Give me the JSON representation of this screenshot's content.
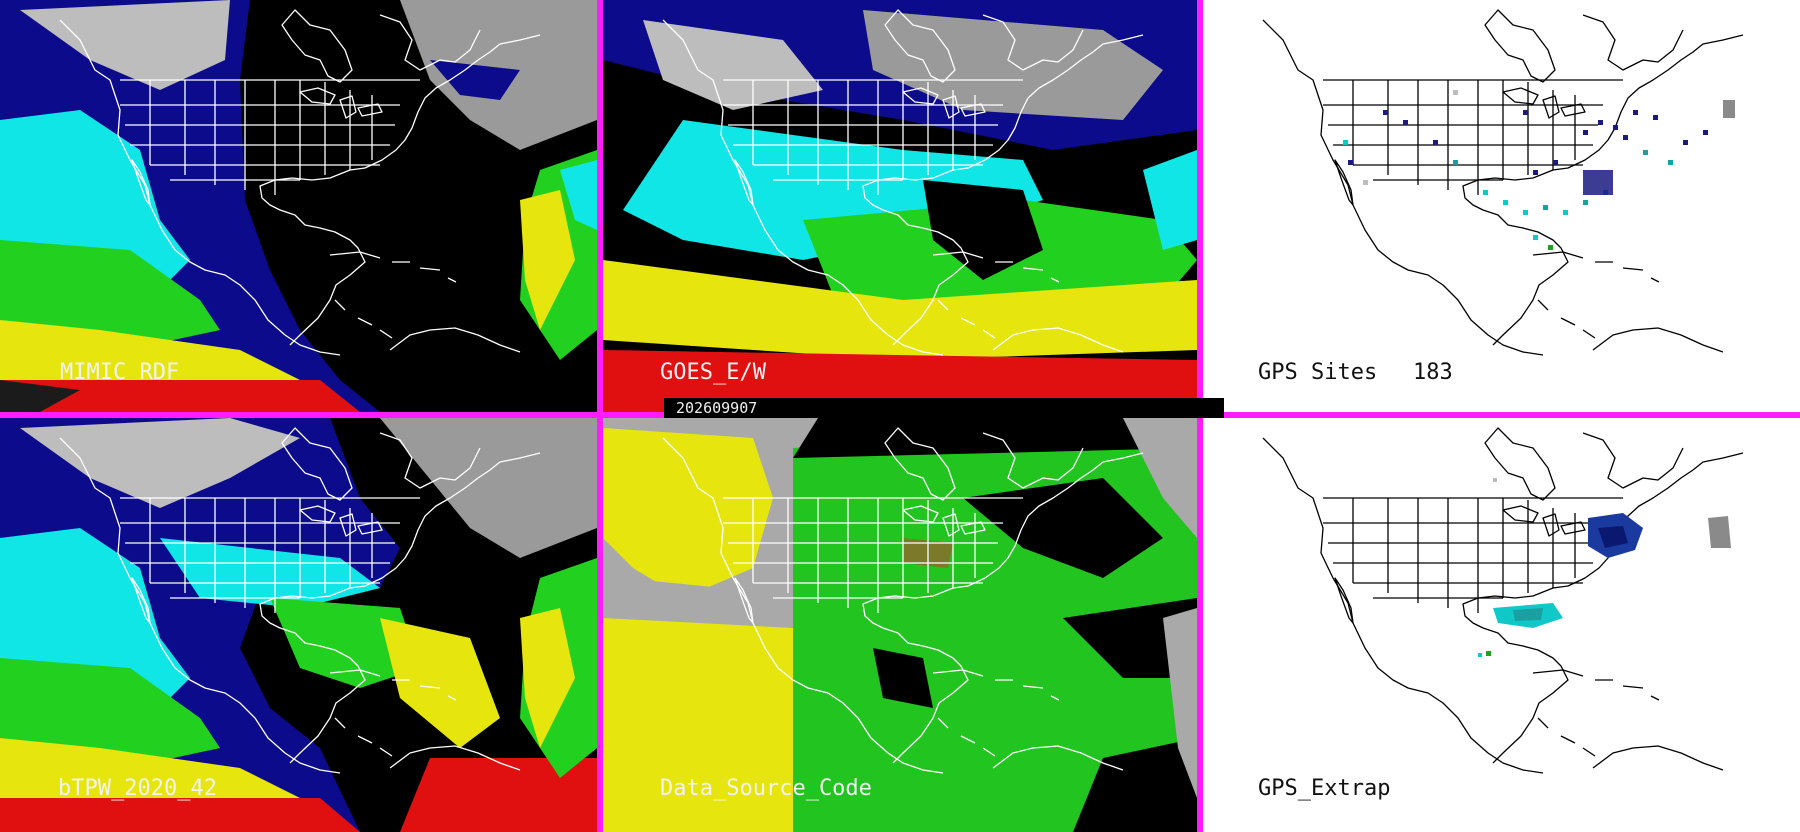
{
  "palette": {
    "separator": "#ff1cff",
    "map_lines_on_dark": "#ffffff",
    "map_lines_on_light": "#000000"
  },
  "timestamp": "202609907",
  "panels": [
    {
      "id": "mimic",
      "label": "MIMIC RDF",
      "label_theme": "light"
    },
    {
      "id": "goes",
      "label": "GOES_E/W",
      "label_theme": "light"
    },
    {
      "id": "gps-sites",
      "label": "GPS Sites",
      "count": "183",
      "label_theme": "dark"
    },
    {
      "id": "btpw",
      "label": "bTPW_2020_42",
      "label_theme": "light"
    },
    {
      "id": "source",
      "label": "Data_Source_Code",
      "label_theme": "light"
    },
    {
      "id": "gps-extrap",
      "label": "GPS_Extrap",
      "label_theme": "dark"
    }
  ]
}
